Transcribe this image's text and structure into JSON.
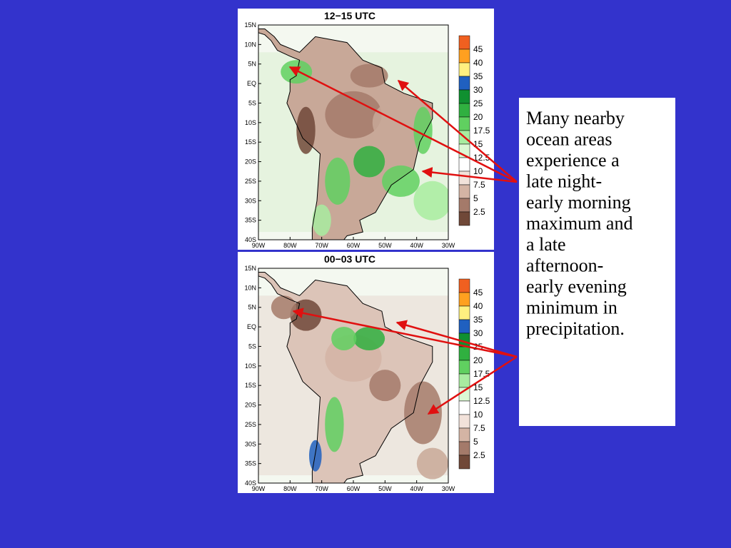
{
  "panels": [
    {
      "title": "12−15 UTC",
      "lat_labels": [
        "15N",
        "10N",
        "5N",
        "EQ",
        "5S",
        "10S",
        "15S",
        "20S",
        "25S",
        "30S",
        "35S",
        "40S"
      ],
      "lon_labels": [
        "90W",
        "80W",
        "70W",
        "60W",
        "50W",
        "40W",
        "30W"
      ],
      "colorbar_labels": [
        "45",
        "40",
        "35",
        "30",
        "25",
        "20",
        "17.5",
        "15",
        "12.5",
        "10",
        "7.5",
        "5",
        "2.5"
      ]
    },
    {
      "title": "00−03 UTC",
      "lat_labels": [
        "15N",
        "10N",
        "5N",
        "EQ",
        "5S",
        "10S",
        "15S",
        "20S",
        "25S",
        "30S",
        "35S",
        "40S"
      ],
      "lon_labels": [
        "90W",
        "80W",
        "70W",
        "60W",
        "50W",
        "40W",
        "30W"
      ],
      "colorbar_labels": [
        "45",
        "40",
        "35",
        "30",
        "25",
        "20",
        "17.5",
        "15",
        "12.5",
        "10",
        "7.5",
        "5",
        "2.5"
      ]
    }
  ],
  "colorbar_colors": [
    "#f06020",
    "#ffa020",
    "#fff080",
    "#2060c0",
    "#109030",
    "#30b040",
    "#60d060",
    "#a8eca0",
    "#dcf8d4",
    "#ffffff",
    "#f2e2da",
    "#d4b4a4",
    "#a47a6a",
    "#704838"
  ],
  "note": {
    "lines": [
      "Many nearby",
      "ocean areas",
      "experience a",
      "late night-",
      "early morning",
      "maximum and",
      "a late",
      "afternoon-",
      "early evening",
      "minimum in",
      "precipitation."
    ]
  }
}
